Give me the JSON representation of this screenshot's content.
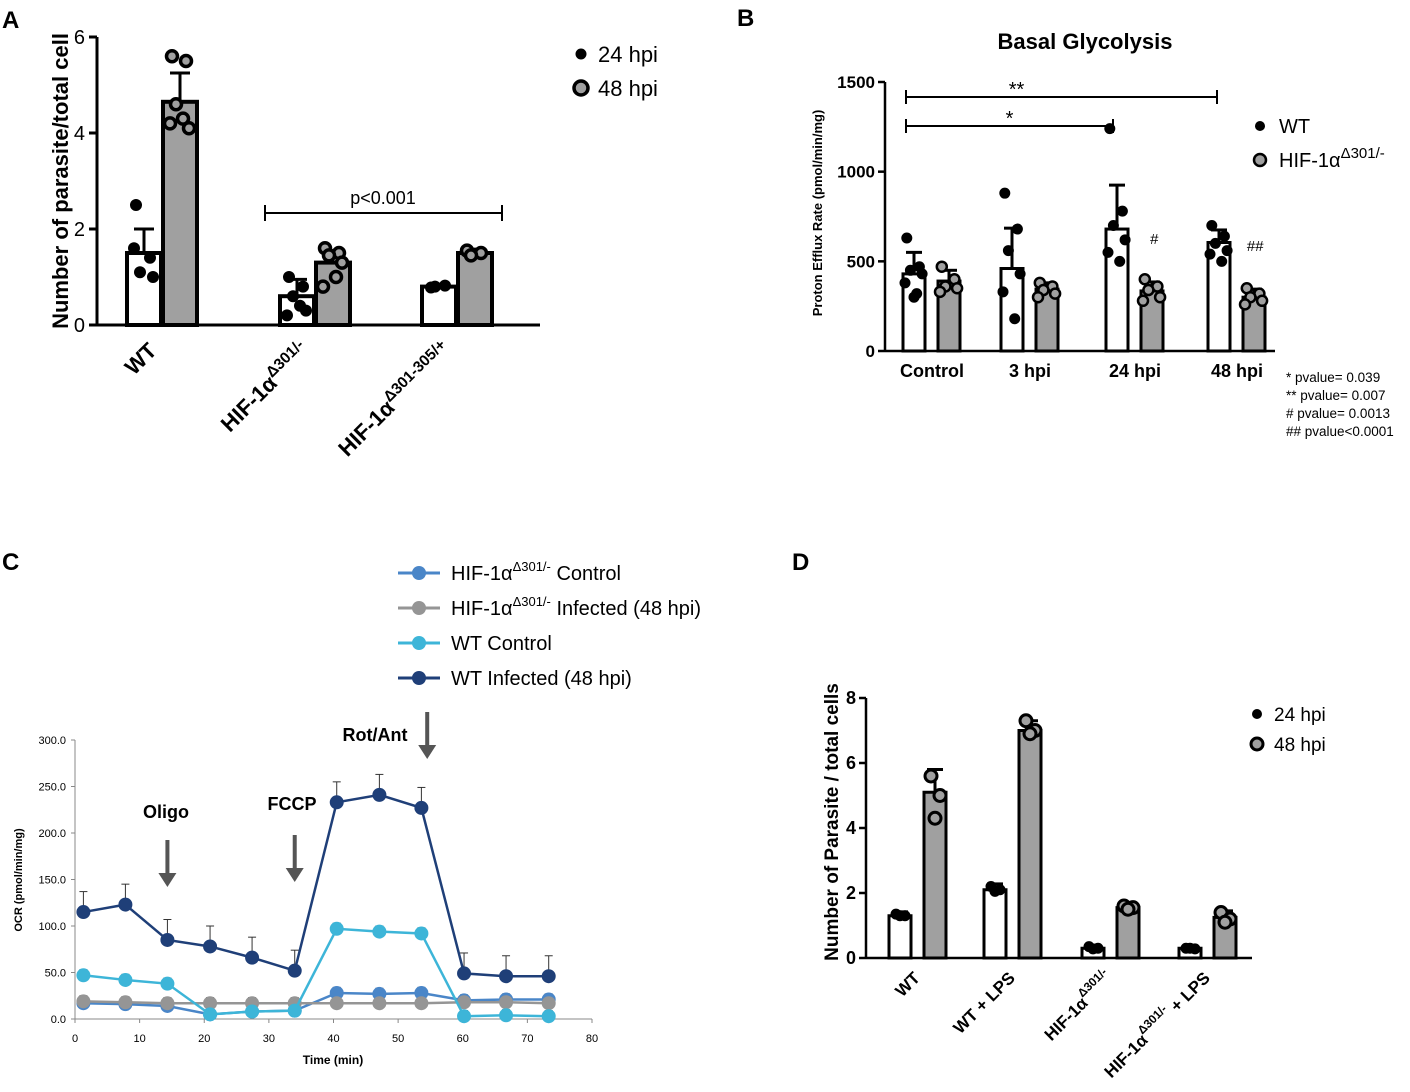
{
  "chart_data": [
    {
      "panel": "A",
      "type": "bar",
      "title": "",
      "ylabel": "Number of parasite/total cell",
      "ylim": [
        0,
        6
      ],
      "yticks": [
        "0",
        "2",
        "4",
        "6"
      ],
      "categories": [
        {
          "main": "WT",
          "sup": ""
        },
        {
          "main": "HIF-1α",
          "sup": "Δ301/-"
        },
        {
          "main": "HIF-1α",
          "sup": "Δ301-305/+"
        }
      ],
      "series": [
        {
          "name": "24 hpi",
          "fill": "#ffffff",
          "values": [
            1.5,
            0.6,
            0.8
          ],
          "errors": [
            0.5,
            0.35,
            0.05
          ],
          "points": [
            [
              2.5,
              1.4,
              1.1,
              1.0,
              1.6
            ],
            [
              1.0,
              0.8,
              0.6,
              0.3,
              0.2,
              0.4
            ],
            [
              0.78,
              0.82,
              0.8
            ]
          ]
        },
        {
          "name": "48 hpi",
          "fill": "#a0a0a0",
          "values": [
            4.65,
            1.3,
            1.5
          ],
          "errors": [
            0.6,
            0.25,
            0.08
          ],
          "points": [
            [
              5.6,
              5.5,
              4.6,
              4.1,
              4.2,
              4.3
            ],
            [
              1.6,
              1.5,
              1.45,
              1.3,
              0.8,
              1.0
            ],
            [
              1.55,
              1.5,
              1.45
            ]
          ]
        }
      ],
      "annotation": {
        "text": "p<0.001"
      }
    },
    {
      "panel": "B",
      "type": "bar",
      "title": "Basal Glycolysis",
      "ylabel": "Proton Efflux Rate (pmol/min/mg)",
      "ylim": [
        0,
        1500
      ],
      "yticks": [
        "0",
        "500",
        "1000",
        "1500"
      ],
      "categories": [
        "Control",
        "3 hpi",
        "24 hpi",
        "48 hpi"
      ],
      "legend": [
        {
          "name": "WT",
          "sup": ""
        },
        {
          "name": "HIF-1α",
          "sup": "Δ301/-"
        }
      ],
      "series": [
        {
          "name": "WT",
          "fill": "#ffffff",
          "values": [
            430,
            460,
            680,
            605
          ],
          "errors": [
            120,
            225,
            245,
            70
          ],
          "points": [
            [
              630,
              470,
              450,
              430,
              380,
              320,
              300
            ],
            [
              880,
              680,
              560,
              430,
              330,
              180
            ],
            [
              1240,
              780,
              700,
              620,
              550,
              500
            ],
            [
              700,
              640,
              600,
              560,
              540,
              500
            ]
          ]
        },
        {
          "name": "HIF-1α Δ301/-",
          "fill": "#a0a0a0",
          "values": [
            390,
            345,
            335,
            300
          ],
          "errors": [
            60,
            35,
            50,
            45
          ],
          "points": [
            [
              470,
              400,
              360,
              350,
              330
            ],
            [
              380,
              360,
              340,
              320,
              300
            ],
            [
              400,
              360,
              340,
              300,
              280
            ],
            [
              350,
              320,
              300,
              280,
              260
            ]
          ]
        }
      ],
      "significance": [
        {
          "label": "**"
        },
        {
          "label": "*"
        }
      ],
      "hash_marks": [
        {
          "category": "24 hpi",
          "label": "#"
        },
        {
          "category": "48 hpi",
          "label": "##"
        }
      ],
      "pvalue_notes": [
        "* pvalue= 0.039",
        "** pvalue= 0.007",
        "# pvalue= 0.0013",
        "## pvalue<0.0001"
      ]
    },
    {
      "panel": "C",
      "type": "line",
      "xlabel": "Time (min)",
      "ylabel": "OCR (pmol/min/mg)",
      "xlim": [
        0,
        80
      ],
      "ylim": [
        0,
        300
      ],
      "xticks": [
        "0",
        "10",
        "20",
        "30",
        "40",
        "50",
        "60",
        "70",
        "80"
      ],
      "yticks": [
        "0.0",
        "50.0",
        "100.0",
        "150.0",
        "200.0",
        "250.0",
        "300.0"
      ],
      "x": [
        1.3,
        7.8,
        14.3,
        20.9,
        27.4,
        34.0,
        40.5,
        47.1,
        53.6,
        60.2,
        66.7,
        73.3
      ],
      "series": [
        {
          "name": "HIF-1α",
          "sup": "Δ301/-",
          "suffix": " Control",
          "color": "#4a86c8",
          "values": [
            17,
            16,
            14,
            5,
            8,
            9,
            28,
            27,
            28,
            20,
            21,
            21
          ]
        },
        {
          "name": "HIF-1α",
          "sup": "Δ301/-",
          "suffix": " Infected (48 hpi)",
          "color": "#959595",
          "values": [
            19,
            18,
            17,
            17,
            17,
            17,
            17,
            17,
            17,
            18,
            18,
            17
          ]
        },
        {
          "name": "WT Control",
          "sup": "",
          "suffix": "",
          "color": "#3db5d8",
          "values": [
            47,
            42,
            38,
            5,
            8,
            9,
            97,
            94,
            92,
            3,
            4,
            3
          ]
        },
        {
          "name": "WT Infected (48 hpi)",
          "sup": "",
          "suffix": "",
          "color": "#1f3f78",
          "values": [
            115,
            123,
            85,
            78,
            66,
            52,
            233,
            241,
            227,
            49,
            46,
            46
          ],
          "errors": [
            22,
            22,
            22,
            22,
            22,
            22,
            22,
            22,
            22,
            22,
            22,
            22
          ]
        }
      ],
      "arrows": [
        {
          "label": "Oligo",
          "x": 14.3
        },
        {
          "label": "FCCP",
          "x": 34.0
        },
        {
          "label": "Rot/Ant",
          "x": 54.5
        }
      ]
    },
    {
      "panel": "D",
      "type": "bar",
      "ylabel": "Number of Parasite / total cells",
      "ylim": [
        0,
        8
      ],
      "yticks": [
        "0",
        "2",
        "4",
        "6",
        "8"
      ],
      "categories": [
        {
          "main": "WT",
          "sup": "",
          "after": ""
        },
        {
          "main": "WT + LPS",
          "sup": "",
          "after": ""
        },
        {
          "main": "HIF-1α",
          "sup": "Δ301/-",
          "after": ""
        },
        {
          "main": "HIF-1α",
          "sup": "Δ301/-",
          "after": " + LPS"
        }
      ],
      "series": [
        {
          "name": "24 hpi",
          "fill": "#ffffff",
          "values": [
            1.3,
            2.1,
            0.3,
            0.3
          ],
          "errors": [
            0.12,
            0.18,
            0.05,
            0.05
          ],
          "points": [
            [
              1.35,
              1.3,
              1.3
            ],
            [
              2.2,
              2.1,
              2.05
            ],
            [
              0.35,
              0.3,
              0.28
            ],
            [
              0.3,
              0.28,
              0.3
            ]
          ]
        },
        {
          "name": "48 hpi",
          "fill": "#a0a0a0",
          "values": [
            5.1,
            7.0,
            1.55,
            1.25
          ],
          "errors": [
            0.7,
            0.3,
            0.1,
            0.2
          ],
          "points": [
            [
              5.6,
              5.0,
              4.3
            ],
            [
              7.3,
              7.0,
              6.9
            ],
            [
              1.6,
              1.55,
              1.5
            ],
            [
              1.4,
              1.2,
              1.1
            ]
          ]
        }
      ]
    }
  ]
}
